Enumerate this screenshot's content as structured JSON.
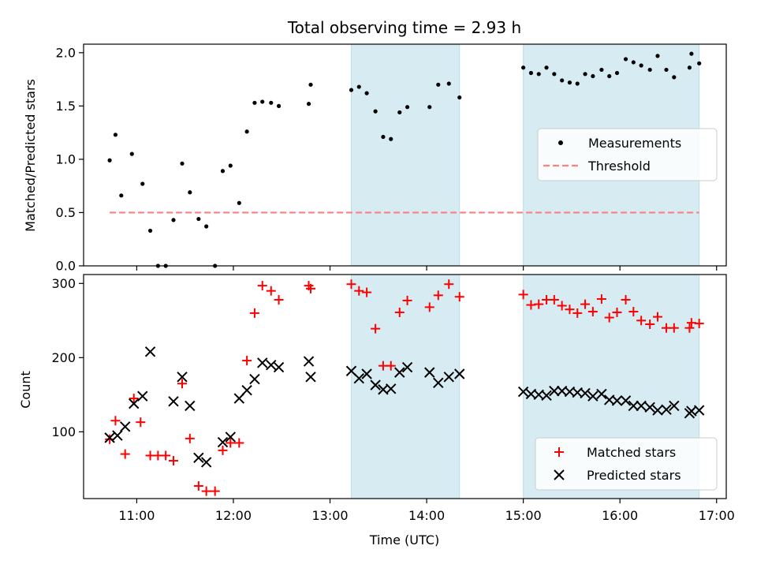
{
  "chart_data": {
    "title": "Total observing time = 2.93 h",
    "xlabel": "Time (UTC)",
    "x_unit": "decimal hours UTC",
    "xlim": [
      10.45,
      17.1
    ],
    "x_ticks": [
      {
        "value": 11,
        "label": "11:00"
      },
      {
        "value": 12,
        "label": "12:00"
      },
      {
        "value": 13,
        "label": "13:00"
      },
      {
        "value": 14,
        "label": "14:00"
      },
      {
        "value": 15,
        "label": "15:00"
      },
      {
        "value": 16,
        "label": "16:00"
      },
      {
        "value": 17,
        "label": "17:00"
      }
    ],
    "observing_windows": [
      {
        "start": 13.22,
        "end": 14.34,
        "color": "#add8e6"
      },
      {
        "start": 15.0,
        "end": 16.82,
        "color": "#add8e6"
      }
    ],
    "top": {
      "type": "scatter",
      "ylabel": "Matched/Predicted stars",
      "ylim": [
        0,
        2.08
      ],
      "y_ticks": [
        0.0,
        0.5,
        1.0,
        1.5,
        2.0
      ],
      "y_tick_labels": [
        "0.0",
        "0.5",
        "1.0",
        "1.5",
        "2.0"
      ],
      "legend": {
        "position": "center-right",
        "entries": [
          "Measurements",
          "Threshold"
        ]
      },
      "threshold": {
        "name": "Threshold",
        "value": 0.5,
        "x_start": 10.72,
        "x_end": 16.82,
        "color": "#ff7f7f"
      },
      "measurements": {
        "name": "Measurements",
        "color": "#000000",
        "x": [
          10.72,
          10.78,
          10.84,
          10.95,
          11.06,
          11.14,
          11.22,
          11.3,
          11.38,
          11.47,
          11.55,
          11.64,
          11.72,
          11.81,
          11.89,
          11.97,
          12.06,
          12.14,
          12.22,
          12.3,
          12.39,
          12.47,
          12.78,
          12.8,
          13.22,
          13.3,
          13.38,
          13.47,
          13.55,
          13.63,
          13.72,
          13.8,
          14.03,
          14.12,
          14.23,
          14.34,
          15.0,
          15.08,
          15.16,
          15.24,
          15.32,
          15.4,
          15.48,
          15.56,
          15.64,
          15.72,
          15.81,
          15.89,
          15.97,
          16.06,
          16.14,
          16.22,
          16.31,
          16.39,
          16.48,
          16.56,
          16.72,
          16.74,
          16.82
        ],
        "y": [
          0.99,
          1.23,
          0.66,
          1.05,
          0.77,
          0.33,
          0.0,
          0.0,
          0.43,
          0.96,
          0.69,
          0.44,
          0.37,
          0.0,
          0.89,
          0.94,
          0.59,
          1.26,
          1.53,
          1.54,
          1.53,
          1.5,
          1.52,
          1.7,
          1.65,
          1.68,
          1.62,
          1.45,
          1.21,
          1.19,
          1.44,
          1.49,
          1.49,
          1.7,
          1.71,
          1.58,
          1.86,
          1.81,
          1.8,
          1.86,
          1.8,
          1.74,
          1.72,
          1.71,
          1.8,
          1.78,
          1.84,
          1.78,
          1.81,
          1.94,
          1.91,
          1.88,
          1.84,
          1.97,
          1.84,
          1.77,
          1.86,
          1.99,
          1.9
        ]
      }
    },
    "bottom": {
      "type": "scatter",
      "ylabel": "Count",
      "ylim": [
        10,
        312
      ],
      "y_ticks": [
        100,
        200,
        300
      ],
      "y_tick_labels": [
        "100",
        "200",
        "300"
      ],
      "legend": {
        "position": "bottom-right",
        "entries": [
          "Matched stars",
          "Predicted stars"
        ]
      },
      "series": [
        {
          "name": "Matched stars",
          "marker": "plus",
          "color": "#ff0000",
          "x": [
            10.72,
            10.78,
            10.88,
            10.97,
            11.04,
            11.14,
            11.22,
            11.3,
            11.38,
            11.47,
            11.55,
            11.64,
            11.72,
            11.81,
            11.89,
            11.97,
            12.06,
            12.14,
            12.22,
            12.3,
            12.39,
            12.47,
            12.78,
            12.8,
            13.22,
            13.3,
            13.38,
            13.47,
            13.55,
            13.63,
            13.72,
            13.8,
            14.03,
            14.12,
            14.23,
            14.34,
            15.0,
            15.08,
            15.16,
            15.24,
            15.32,
            15.4,
            15.48,
            15.56,
            15.64,
            15.72,
            15.81,
            15.89,
            15.97,
            16.06,
            16.14,
            16.22,
            16.31,
            16.39,
            16.48,
            16.56,
            16.72,
            16.74,
            16.82
          ],
          "y": [
            90,
            115,
            70,
            145,
            113,
            68,
            68,
            68,
            61,
            165,
            91,
            27,
            20,
            20,
            75,
            85,
            85,
            196,
            260,
            297,
            290,
            278,
            297,
            293,
            299,
            290,
            288,
            239,
            189,
            189,
            261,
            277,
            268,
            284,
            299,
            282,
            285,
            271,
            272,
            278,
            278,
            270,
            265,
            260,
            272,
            262,
            279,
            254,
            261,
            278,
            262,
            250,
            245,
            255,
            240,
            240,
            240,
            247,
            246
          ]
        },
        {
          "name": "Predicted stars",
          "marker": "x",
          "color": "#000000",
          "x": [
            10.72,
            10.8,
            10.88,
            10.97,
            11.06,
            11.14,
            11.38,
            11.47,
            11.55,
            11.64,
            11.72,
            11.89,
            11.97,
            12.06,
            12.14,
            12.22,
            12.3,
            12.39,
            12.47,
            12.78,
            12.8,
            13.22,
            13.3,
            13.38,
            13.47,
            13.55,
            13.63,
            13.72,
            13.8,
            14.03,
            14.12,
            14.23,
            14.34,
            15.0,
            15.08,
            15.16,
            15.24,
            15.32,
            15.4,
            15.48,
            15.56,
            15.64,
            15.72,
            15.81,
            15.89,
            15.97,
            16.06,
            16.14,
            16.22,
            16.31,
            16.39,
            16.48,
            16.56,
            16.72,
            16.74,
            16.82
          ],
          "y": [
            92,
            95,
            107,
            138,
            148,
            208,
            141,
            174,
            135,
            65,
            59,
            86,
            93,
            145,
            156,
            171,
            193,
            190,
            187,
            195,
            174,
            182,
            172,
            178,
            163,
            157,
            158,
            180,
            187,
            180,
            166,
            174,
            178,
            154,
            151,
            150,
            149,
            155,
            155,
            154,
            153,
            152,
            148,
            151,
            143,
            142,
            142,
            135,
            135,
            133,
            129,
            130,
            135,
            125,
            128,
            129
          ]
        }
      ]
    }
  }
}
